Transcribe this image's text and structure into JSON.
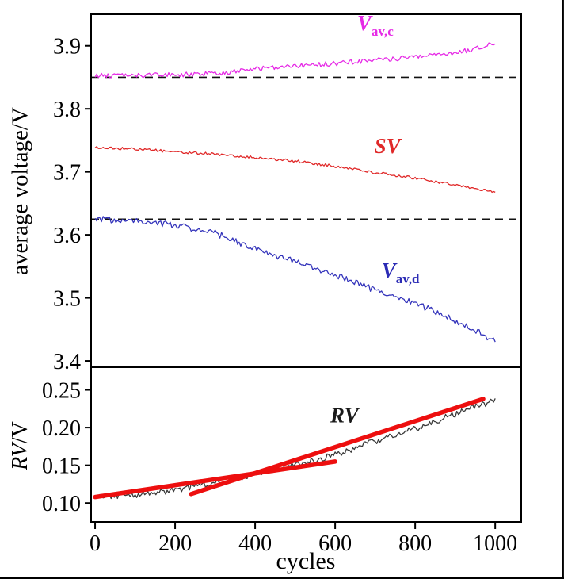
{
  "figure": {
    "background": "#ffffff",
    "border_color": "#000000"
  },
  "chart_data": [
    {
      "type": "line",
      "panel": "top",
      "title": "",
      "ylabel": "average voltage/V",
      "ylim": [
        3.39,
        3.95
      ],
      "yticks": [
        3.4,
        3.5,
        3.6,
        3.7,
        3.8,
        3.9
      ],
      "ytick_decimals": 1,
      "xlim": [
        -10,
        1065
      ],
      "grid": false,
      "x": [
        0,
        100,
        200,
        300,
        400,
        500,
        600,
        700,
        800,
        900,
        1000
      ],
      "series": [
        {
          "name": "Vav,c",
          "label_main": "V",
          "label_sub": "av,c",
          "color": "#e62ae6",
          "noise": 0.0038,
          "values": [
            3.853,
            3.853,
            3.854,
            3.856,
            3.863,
            3.868,
            3.872,
            3.877,
            3.882,
            3.888,
            3.904
          ]
        },
        {
          "name": "SV",
          "label_main": "SV",
          "label_sub": "",
          "color": "#e02828",
          "noise": 0.0022,
          "values": [
            3.739,
            3.736,
            3.732,
            3.728,
            3.723,
            3.717,
            3.709,
            3.699,
            3.69,
            3.679,
            3.668
          ]
        },
        {
          "name": "Vav,d",
          "label_main": "V",
          "label_sub": "av,d",
          "color": "#3434bb",
          "noise": 0.005,
          "values": [
            3.625,
            3.622,
            3.616,
            3.603,
            3.577,
            3.558,
            3.537,
            3.512,
            3.492,
            3.464,
            3.432
          ]
        }
      ],
      "dashed_lines": [
        3.85,
        3.625
      ],
      "annotations": [
        {
          "text_main": "V",
          "text_sub": "av,c",
          "x": 655,
          "y": 3.925,
          "color": "#e62ae6"
        },
        {
          "text_main": "SV",
          "text_sub": "",
          "x": 698,
          "y": 3.73,
          "color": "#e02828"
        },
        {
          "text_main": "V",
          "text_sub": "av,d",
          "x": 716,
          "y": 3.532,
          "color": "#2b2bb5"
        }
      ]
    },
    {
      "type": "line",
      "panel": "bottom",
      "title": "",
      "ylabel_italic": "RV",
      "ylabel_rest": "/V",
      "ylim": [
        0.075,
        0.28
      ],
      "yticks": [
        0.1,
        0.15,
        0.2,
        0.25
      ],
      "ytick_decimals": 2,
      "xlabel": "cycles",
      "xlim": [
        -10,
        1065
      ],
      "xticks": [
        0,
        200,
        400,
        600,
        800,
        1000
      ],
      "grid": false,
      "x": [
        0,
        100,
        200,
        300,
        400,
        500,
        600,
        700,
        800,
        900,
        1000
      ],
      "series": [
        {
          "name": "RV",
          "label_main": "RV",
          "label_sub": "",
          "color": "#3a3a3a",
          "noise": 0.0042,
          "values": [
            0.108,
            0.111,
            0.117,
            0.127,
            0.139,
            0.15,
            0.164,
            0.182,
            0.199,
            0.218,
            0.236
          ]
        }
      ],
      "trend_lines": [
        {
          "x1": 0,
          "y1": 0.108,
          "x2": 600,
          "y2": 0.155,
          "color": "#ed0f0f",
          "width": 5.5
        },
        {
          "x1": 240,
          "y1": 0.112,
          "x2": 970,
          "y2": 0.238,
          "color": "#ed0f0f",
          "width": 5.5
        }
      ],
      "annotations": [
        {
          "text_main": "RV",
          "text_sub": "",
          "x": 588,
          "y": 0.207,
          "color": "#1a1a1a"
        }
      ]
    }
  ]
}
